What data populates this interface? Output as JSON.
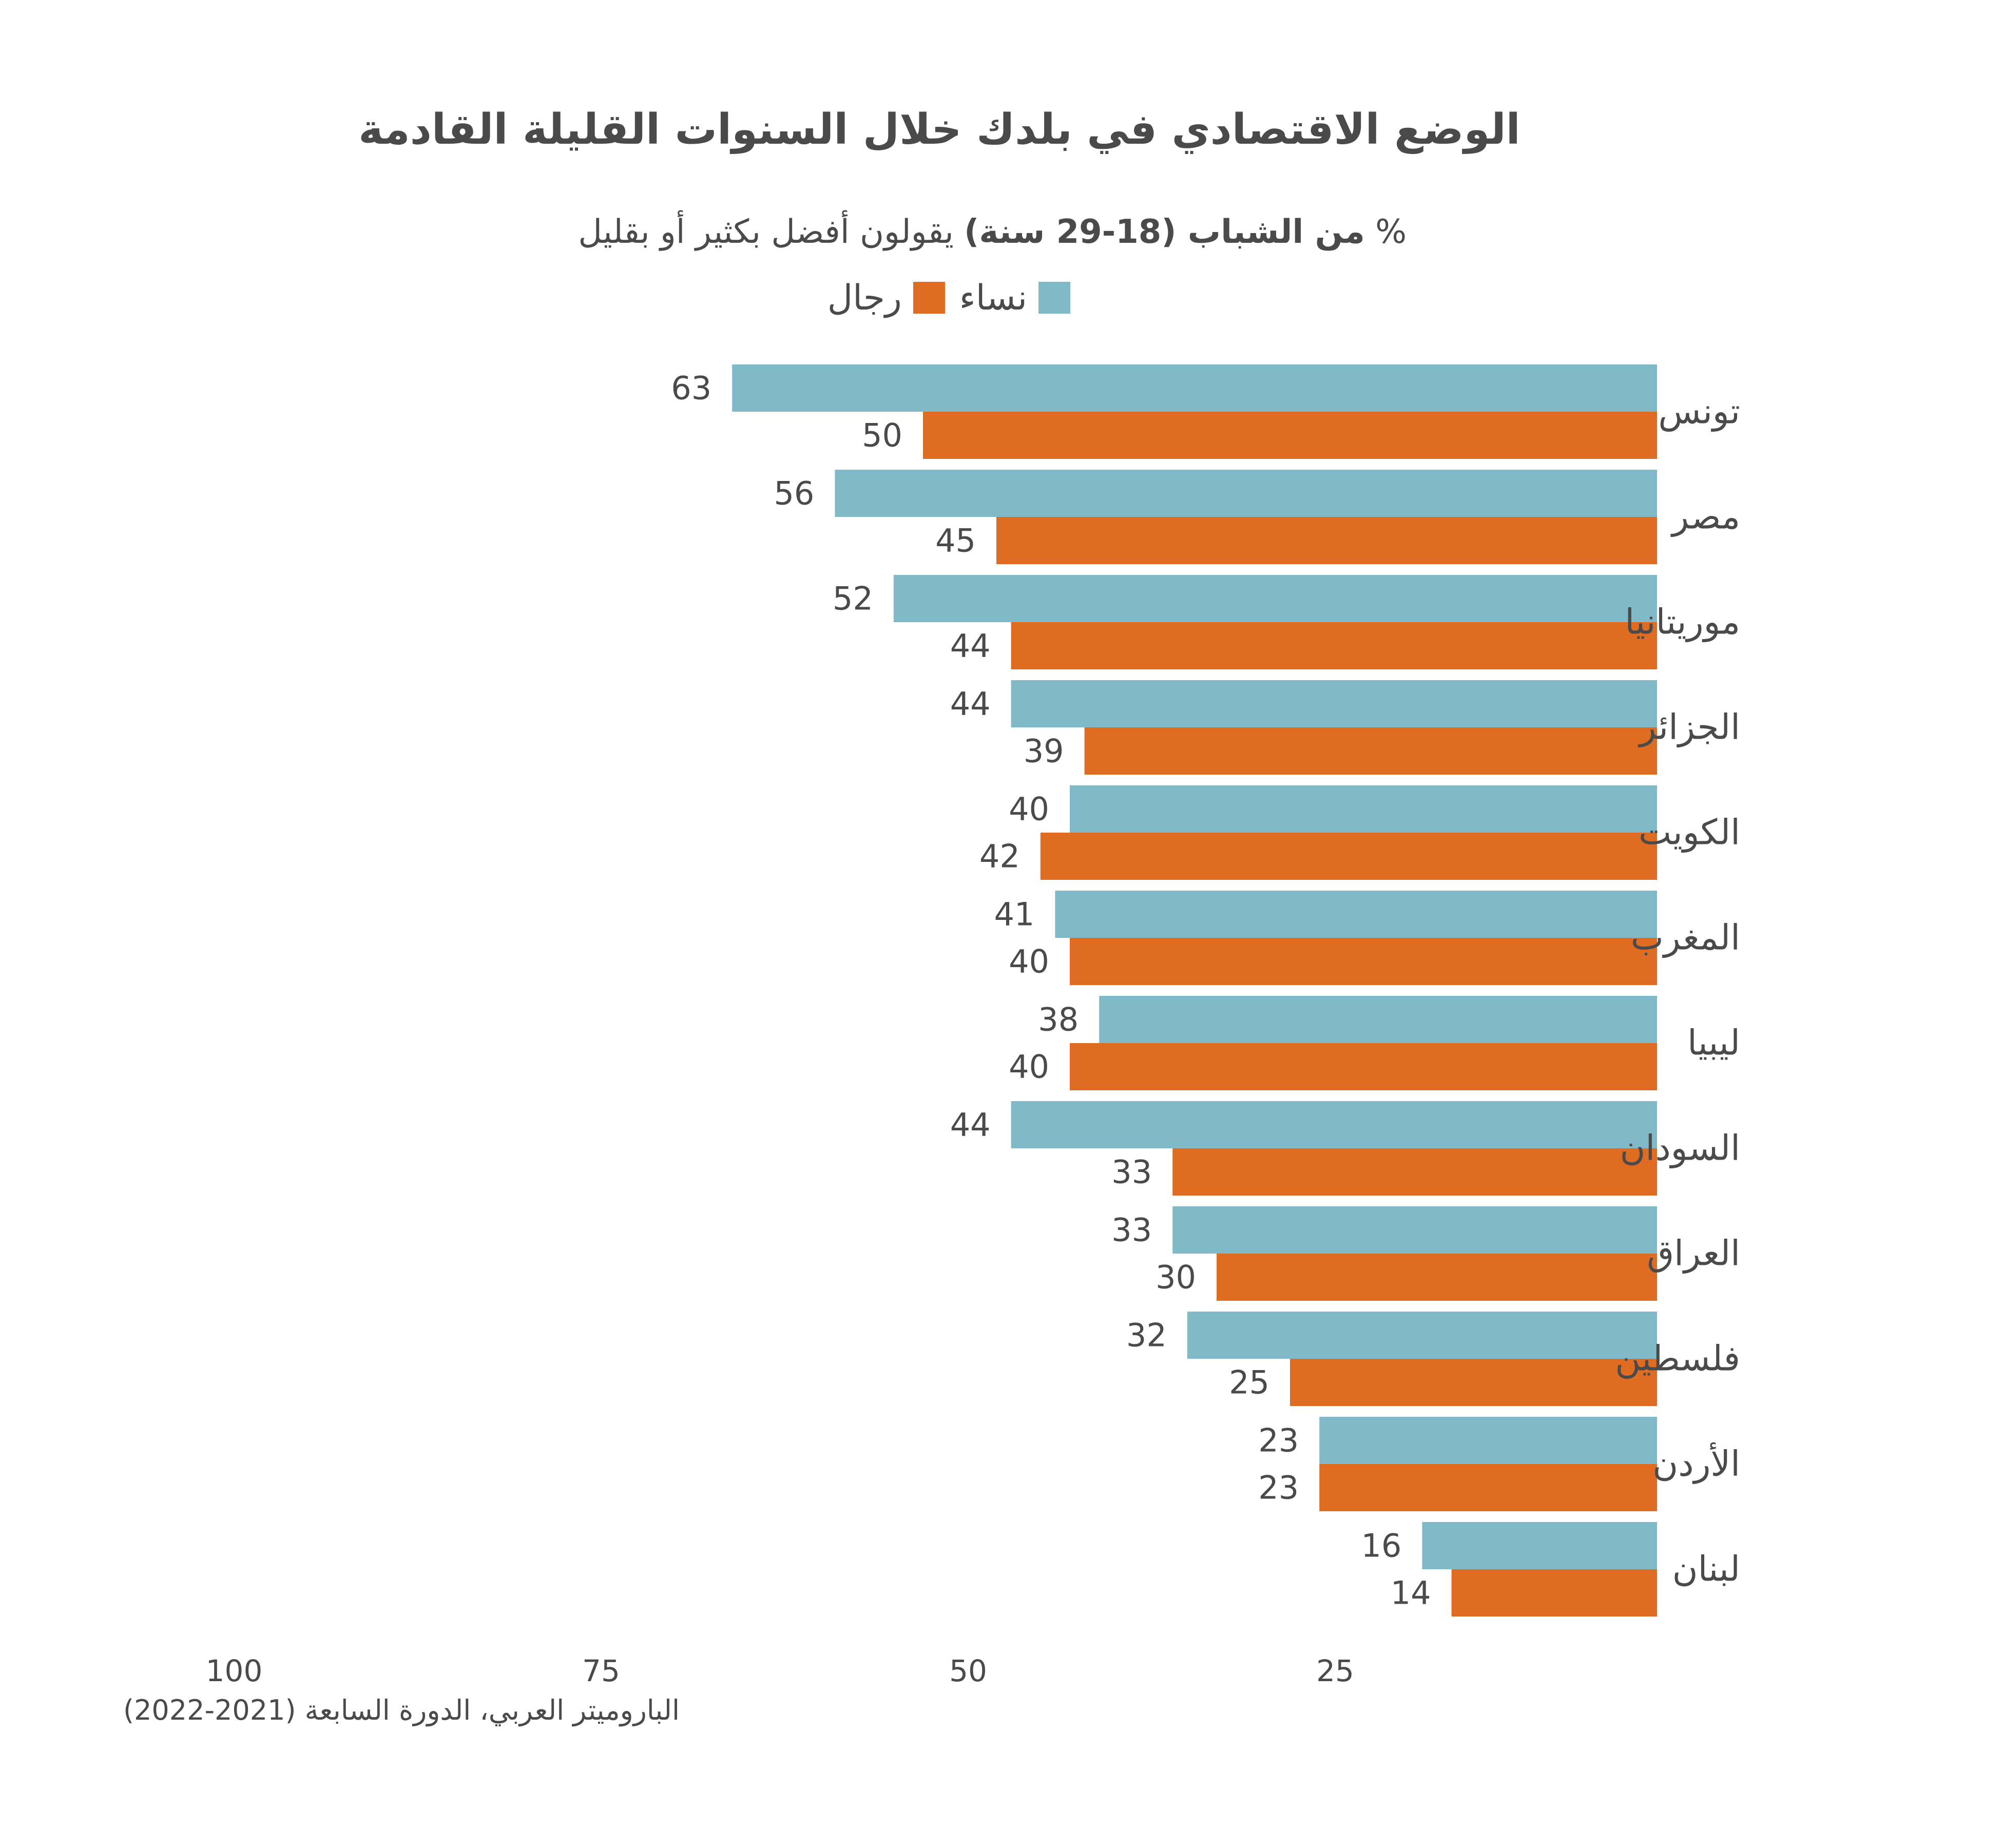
{
  "title": "الوضع الاقتصادي في بلدك خلال السنوات القليلة القادمة",
  "subtitle": {
    "prefix": "% ",
    "bold": "من الشباب (18-29 سنة)",
    "rest": " يقولون أفضل بكثير أو بقليل"
  },
  "source": "الباروميتر العربي، الدورة السابعة (2021-2022)",
  "colors": {
    "women": "#80b9c7",
    "men": "#e06c22",
    "text": "#4a4a4a"
  },
  "chart_data": {
    "type": "bar",
    "orientation": "horizontal",
    "direction": "right-to-left",
    "categories": [
      "تونس",
      "مصر",
      "موريتانيا",
      "الجزائر",
      "الكويت",
      "المغرب",
      "ليبيا",
      "السودان",
      "العراق",
      "فلسطين",
      "الأردن",
      "لبنان"
    ],
    "series": [
      {
        "name": "نساء",
        "color": "#80b9c7",
        "values": [
          63,
          56,
          52,
          44,
          40,
          41,
          38,
          44,
          33,
          32,
          23,
          16
        ]
      },
      {
        "name": "رجال",
        "color": "#e06c22",
        "values": [
          50,
          45,
          44,
          39,
          42,
          40,
          40,
          33,
          30,
          25,
          23,
          14
        ]
      }
    ],
    "xlim": [
      0,
      100
    ],
    "xticks": [
      "100",
      "75",
      "50",
      "25"
    ],
    "legend": "top"
  }
}
